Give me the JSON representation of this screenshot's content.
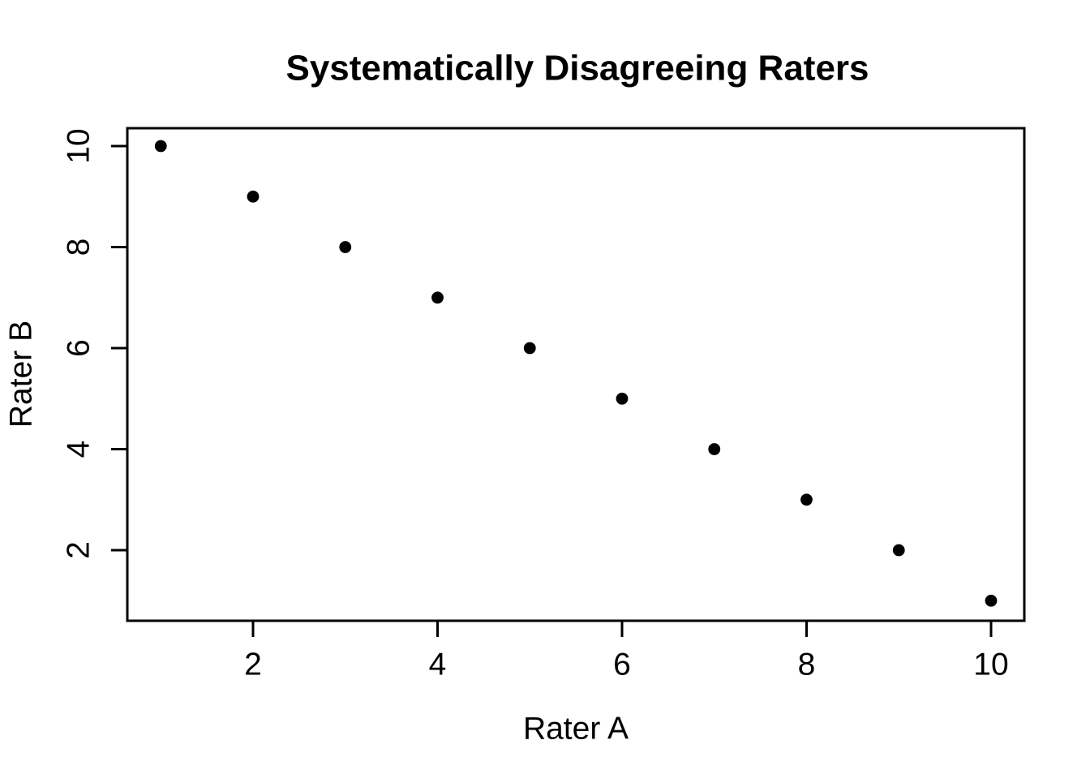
{
  "chart_data": {
    "type": "scatter",
    "title": "Systematically Disagreeing Raters",
    "xlabel": "Rater A",
    "ylabel": "Rater B",
    "x": [
      1,
      2,
      3,
      4,
      5,
      6,
      7,
      8,
      9,
      10
    ],
    "y": [
      10,
      9,
      8,
      7,
      6,
      5,
      4,
      3,
      2,
      1
    ],
    "x_ticks": [
      2,
      4,
      6,
      8,
      10
    ],
    "y_ticks": [
      2,
      4,
      6,
      8,
      10
    ],
    "xlim": [
      1,
      10
    ],
    "ylim": [
      1,
      10
    ],
    "grid": false,
    "legend": null,
    "point_color": "#000000",
    "background_color": "#ffffff",
    "axis_color": "#000000"
  }
}
